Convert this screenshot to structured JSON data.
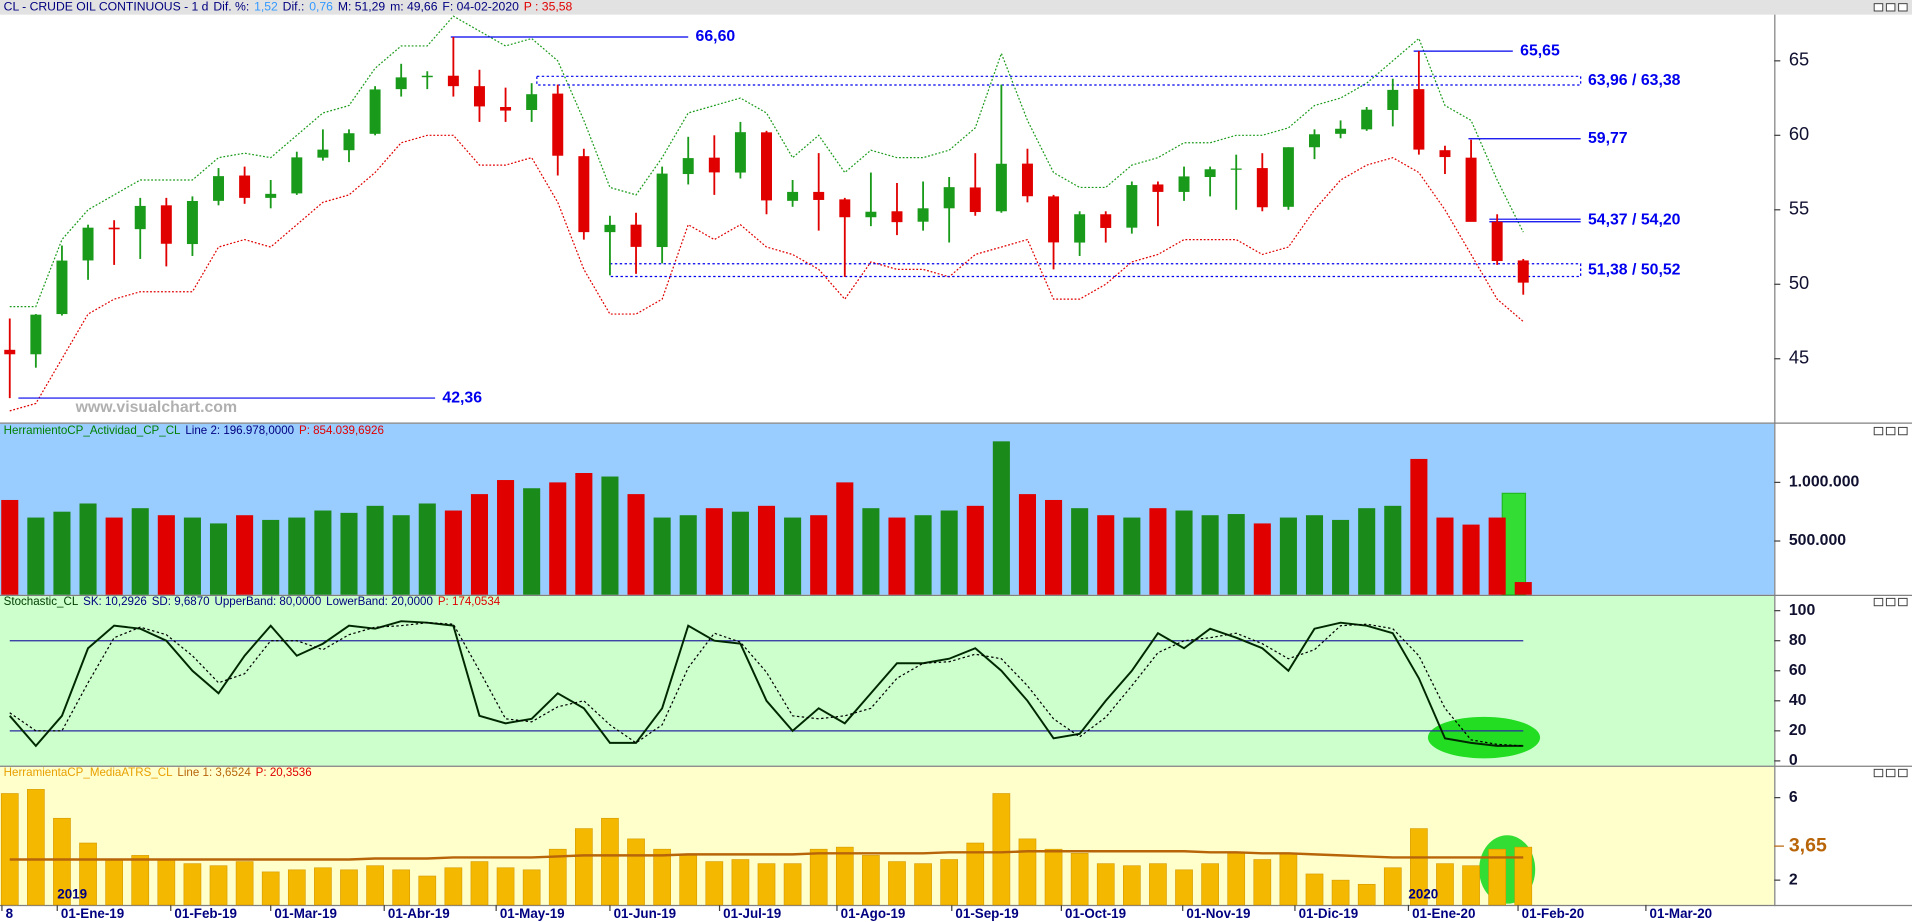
{
  "chart_data": [
    {
      "type": "candlestick",
      "title_parts": [
        {
          "text": "CL - CRUDE OIL CONTINUOUS -  1 d",
          "color": "#000080"
        },
        {
          "text": "Dif. %:",
          "color": "#000080"
        },
        {
          "text": "1,52",
          "color": "#3399ff"
        },
        {
          "text": "Dif.:",
          "color": "#000080"
        },
        {
          "text": "0,76",
          "color": "#3399ff"
        },
        {
          "text": "M: 51,29",
          "color": "#000080"
        },
        {
          "text": "m: 49,66",
          "color": "#000080"
        },
        {
          "text": "F: 04-02-2020",
          "color": "#000080"
        },
        {
          "text": "P : 35,58",
          "color": "#e00000"
        }
      ],
      "watermark": "www.visualchart.com",
      "x": [
        0,
        1,
        2,
        3,
        4,
        5,
        6,
        7,
        8,
        9,
        10,
        11,
        12,
        13,
        14,
        15,
        16,
        17,
        18,
        19,
        20,
        21,
        22,
        23,
        24,
        25,
        26,
        27,
        28,
        29,
        30,
        31,
        32,
        33,
        34,
        35,
        36,
        37,
        38,
        39,
        40,
        41,
        42,
        43,
        44,
        45,
        46,
        47,
        48,
        49,
        50,
        51,
        52,
        53,
        54,
        55,
        56,
        57,
        58
      ],
      "open": [
        45.6,
        45.3,
        48.0,
        51.6,
        53.8,
        53.7,
        55.3,
        52.7,
        55.6,
        57.3,
        55.8,
        56.1,
        58.5,
        59.0,
        60.1,
        63.1,
        63.9,
        64.0,
        63.3,
        61.9,
        61.7,
        62.8,
        58.6,
        53.5,
        54.0,
        52.5,
        57.4,
        58.5,
        57.5,
        60.2,
        55.6,
        56.2,
        55.7,
        54.5,
        54.9,
        54.2,
        55.1,
        56.5,
        54.9,
        58.1,
        55.9,
        52.8,
        54.7,
        53.8,
        56.7,
        56.2,
        57.2,
        57.7,
        57.8,
        55.2,
        59.2,
        60.1,
        60.4,
        61.7,
        63.1,
        59.0,
        58.5,
        54.2,
        51.6
      ],
      "high": [
        47.7,
        48.0,
        52.6,
        54.0,
        54.3,
        55.8,
        55.8,
        55.9,
        57.8,
        57.9,
        57.0,
        58.9,
        60.4,
        60.4,
        63.3,
        64.8,
        64.3,
        66.6,
        64.4,
        63.2,
        63.5,
        63.4,
        59.1,
        54.6,
        54.8,
        57.9,
        59.9,
        60.0,
        60.9,
        60.3,
        57.0,
        58.8,
        55.8,
        57.5,
        56.8,
        56.9,
        57.2,
        58.8,
        63.4,
        59.1,
        56.0,
        54.9,
        54.9,
        56.9,
        56.9,
        57.9,
        57.9,
        58.7,
        58.8,
        59.2,
        60.4,
        61.0,
        61.9,
        63.8,
        65.65,
        59.3,
        59.7,
        54.7,
        51.7
      ],
      "low": [
        42.36,
        44.4,
        47.9,
        50.3,
        51.3,
        51.7,
        51.2,
        51.9,
        55.3,
        55.4,
        55.1,
        56.0,
        58.3,
        58.2,
        60.0,
        62.6,
        63.1,
        62.6,
        60.9,
        60.9,
        60.9,
        57.3,
        53.0,
        50.6,
        50.7,
        51.4,
        56.7,
        56.0,
        57.1,
        54.7,
        55.2,
        53.6,
        50.5,
        53.9,
        53.3,
        53.6,
        52.8,
        54.6,
        54.8,
        55.5,
        51.0,
        51.9,
        52.8,
        53.4,
        53.9,
        55.6,
        55.9,
        55.0,
        54.9,
        55.0,
        58.4,
        59.8,
        60.3,
        60.6,
        58.7,
        57.4,
        54.3,
        51.3,
        49.3
      ],
      "close": [
        45.3,
        47.96,
        51.59,
        53.8,
        53.69,
        55.26,
        52.72,
        55.59,
        57.26,
        55.8,
        56.07,
        58.52,
        59.04,
        60.14,
        63.08,
        63.89,
        64.0,
        63.3,
        61.94,
        61.66,
        62.76,
        58.63,
        53.5,
        53.99,
        52.51,
        57.43,
        58.47,
        57.51,
        60.21,
        55.63,
        56.2,
        55.66,
        54.5,
        54.87,
        54.17,
        55.1,
        56.52,
        54.85,
        58.09,
        55.91,
        52.81,
        54.7,
        53.78,
        56.66,
        56.2,
        57.24,
        57.72,
        57.77,
        55.17,
        59.2,
        60.07,
        60.44,
        61.72,
        63.05,
        59.04,
        58.54,
        54.19,
        51.56,
        50.11
      ],
      "up_color": "#1a9a1a",
      "down_color": "#e00000",
      "bands": [
        {
          "color": "#1a9a1a",
          "values": [
            48.5,
            48.5,
            53,
            55,
            56,
            57,
            57,
            57,
            58.5,
            58.8,
            58.5,
            60,
            61.5,
            62,
            64.5,
            66,
            66,
            68,
            67,
            66,
            66.5,
            65,
            61,
            56.5,
            56,
            58.5,
            61.5,
            62,
            62.5,
            61.5,
            58.5,
            60,
            57.5,
            59,
            58.5,
            58.5,
            59,
            60.5,
            65.5,
            61,
            57.5,
            56.5,
            56.5,
            58,
            58.5,
            59.5,
            59.5,
            60,
            60,
            60.5,
            62,
            62.5,
            63.5,
            65,
            66.5,
            62,
            61,
            57,
            53.5
          ]
        },
        {
          "color": "#e00000",
          "values": [
            41.5,
            42,
            45,
            48,
            49,
            49.5,
            49.5,
            49.5,
            52.5,
            53,
            52.5,
            54,
            55.5,
            56,
            57.5,
            59.5,
            60,
            60,
            58,
            58,
            58.5,
            55.5,
            51,
            48,
            48,
            49,
            54,
            53,
            54,
            52.5,
            52,
            51,
            49,
            51.5,
            51,
            51,
            50.5,
            52,
            52.5,
            53,
            49,
            49,
            50,
            51.5,
            52,
            53,
            53,
            53,
            52,
            52.5,
            55,
            57,
            58,
            58.5,
            57.5,
            55,
            52,
            49,
            47.5
          ]
        }
      ],
      "levels": [
        {
          "label": "66,60",
          "values": [
            66.6
          ],
          "x": [
            16.9,
            26
          ],
          "style": "line"
        },
        {
          "label": "65,65",
          "values": [
            65.65
          ],
          "x": [
            53.8,
            57.6
          ],
          "style": "line"
        },
        {
          "label": "63,96 / 63,38",
          "values": [
            63.96,
            63.38
          ],
          "x": [
            20.2,
            60.2
          ],
          "style": "box"
        },
        {
          "label": "59,77",
          "values": [
            59.77
          ],
          "x": [
            55.9,
            60.2
          ],
          "style": "line"
        },
        {
          "label": "54,37 / 54,20",
          "values": [
            54.37,
            54.2
          ],
          "x": [
            56.7,
            60.2
          ],
          "style": "line"
        },
        {
          "label": "51,38 / 50,52",
          "values": [
            51.38,
            50.52
          ],
          "x": [
            23,
            60.2
          ],
          "style": "box"
        },
        {
          "label": "42,36",
          "values": [
            42.36
          ],
          "x": [
            0.33,
            16.3
          ],
          "style": "line"
        }
      ],
      "level_color": "#0000ee",
      "ylim": [
        40.8,
        68.1
      ],
      "yticks": [
        45,
        50,
        55,
        60,
        65
      ]
    },
    {
      "type": "bar",
      "title_parts": [
        {
          "text": "HerramientoCP_Actividad_CP_CL",
          "color": "#008000"
        },
        {
          "text": "Line 2: 196.978,0000",
          "color": "#000080"
        },
        {
          "text": "P: 854.039,6926",
          "color": "#e00000"
        }
      ],
      "values": [
        850000,
        700000,
        750000,
        820000,
        700000,
        780000,
        720000,
        700000,
        650000,
        720000,
        680000,
        700000,
        760000,
        740000,
        800000,
        720000,
        820000,
        760000,
        900000,
        1020000,
        950000,
        1000000,
        1080000,
        1050000,
        900000,
        700000,
        720000,
        780000,
        750000,
        800000,
        700000,
        720000,
        1000000,
        780000,
        700000,
        720000,
        760000,
        800000,
        1350000,
        900000,
        850000,
        780000,
        720000,
        700000,
        780000,
        760000,
        720000,
        730000,
        650000,
        700000,
        720000,
        680000,
        780000,
        800000,
        1200000,
        700000,
        640000,
        700000,
        150000
      ],
      "up_color": "#1a8a1a",
      "down_color": "#e00000",
      "ylim": [
        42000,
        1500000
      ],
      "yticks": [
        {
          "value": 500000,
          "label": "500.000"
        },
        {
          "value": 1000000,
          "label": "1.000.000"
        }
      ]
    },
    {
      "type": "line",
      "title_parts": [
        {
          "text": "Stochastic_CL",
          "color": "#004000"
        },
        {
          "text": "SK: 10,2926",
          "color": "#000080"
        },
        {
          "text": "SD: 9,6870",
          "color": "#000080"
        },
        {
          "text": "UpperBand: 80,0000",
          "color": "#000080"
        },
        {
          "text": "LowerBand: 20,0000",
          "color": "#000080"
        },
        {
          "text": "P: 174,0534",
          "color": "#e00000"
        }
      ],
      "series": [
        {
          "color": "#002800",
          "values": [
            30,
            10,
            30,
            75,
            90,
            88,
            80,
            60,
            45,
            70,
            90,
            70,
            78,
            90,
            88,
            93,
            92,
            90,
            30,
            25,
            28,
            45,
            35,
            12,
            12,
            35,
            90,
            80,
            78,
            40,
            20,
            35,
            25,
            45,
            65,
            65,
            68,
            75,
            60,
            40,
            15,
            18,
            40,
            60,
            85,
            75,
            88,
            82,
            75,
            60,
            88,
            92,
            90,
            85,
            55,
            15,
            12,
            10,
            10
          ]
        },
        {
          "color": "#000000",
          "dashed": true,
          "values": [
            32,
            20,
            20,
            52,
            82,
            89,
            84,
            70,
            52,
            58,
            80,
            80,
            74,
            84,
            89,
            90,
            92,
            91,
            60,
            28,
            26,
            36,
            40,
            24,
            12,
            24,
            62,
            85,
            79,
            59,
            30,
            28,
            30,
            35,
            55,
            65,
            66,
            71,
            68,
            50,
            28,
            16,
            29,
            50,
            72,
            80,
            82,
            85,
            78,
            68,
            74,
            90,
            91,
            88,
            70,
            35,
            14,
            11,
            10
          ]
        }
      ],
      "bands": [
        80,
        20
      ],
      "band_color": "#2a2aa0",
      "ylim": [
        -3.2,
        109.8
      ],
      "yticks": [
        0,
        20,
        40,
        60,
        80,
        100
      ]
    },
    {
      "type": "bar",
      "title_parts": [
        {
          "text": "HerramientaCP_MediaATRS_CL",
          "color": "#e8a000"
        },
        {
          "text": "Line 1: 3,6524",
          "color": "#b8650a"
        },
        {
          "text": "P: 20,3536",
          "color": "#e00000"
        }
      ],
      "values": [
        6.2,
        6.4,
        5.0,
        3.8,
        3.0,
        3.2,
        3.0,
        2.8,
        2.7,
        2.9,
        2.4,
        2.5,
        2.6,
        2.5,
        2.7,
        2.5,
        2.2,
        2.6,
        2.9,
        2.6,
        2.5,
        3.5,
        4.5,
        5.0,
        4.0,
        3.5,
        3.2,
        2.9,
        3.0,
        2.8,
        2.8,
        3.5,
        3.6,
        3.2,
        2.9,
        2.8,
        3.0,
        3.8,
        6.2,
        4.0,
        3.5,
        3.3,
        2.8,
        2.7,
        2.8,
        2.5,
        2.8,
        3.3,
        3.0,
        3.3,
        2.3,
        2.0,
        1.8,
        2.6,
        4.5,
        2.8,
        2.7,
        3.5,
        3.6
      ],
      "color": "#f5b800",
      "average": {
        "color": "#b8650a",
        "values": [
          3.0,
          3.0,
          3.0,
          3.0,
          3.0,
          3.0,
          3.0,
          3.0,
          3.0,
          3.0,
          3.0,
          3.0,
          3.0,
          3.0,
          3.05,
          3.05,
          3.05,
          3.1,
          3.1,
          3.1,
          3.1,
          3.15,
          3.2,
          3.2,
          3.2,
          3.2,
          3.25,
          3.25,
          3.25,
          3.25,
          3.25,
          3.3,
          3.3,
          3.3,
          3.3,
          3.3,
          3.35,
          3.35,
          3.35,
          3.4,
          3.4,
          3.4,
          3.4,
          3.4,
          3.4,
          3.4,
          3.35,
          3.35,
          3.3,
          3.3,
          3.25,
          3.2,
          3.15,
          3.1,
          3.1,
          3.1,
          3.1,
          3.1,
          3.1
        ]
      },
      "marker": {
        "value": 3.65,
        "label": "3,65",
        "color": "#b8650a"
      },
      "year_labels": [
        {
          "value": 1.82,
          "label": "2019"
        },
        {
          "value": 53.6,
          "label": "2020"
        }
      ],
      "ylim": [
        0.8,
        7.43
      ],
      "yticks": [
        2,
        6
      ],
      "xlim": [
        -0.374,
        67.617
      ],
      "xticks": [
        {
          "value": -0.3,
          "label": "8"
        },
        {
          "value": 1.82,
          "label": "01-Ene-19"
        },
        {
          "value": 6.17,
          "label": "01-Feb-19"
        },
        {
          "value": 10,
          "label": "01-Mar-19"
        },
        {
          "value": 14.35,
          "label": "01-Abr-19"
        },
        {
          "value": 18.64,
          "label": "01-May-19"
        },
        {
          "value": 23,
          "label": "01-Jun-19"
        },
        {
          "value": 27.2,
          "label": "01-Jul-19"
        },
        {
          "value": 31.7,
          "label": "01-Ago-19"
        },
        {
          "value": 36.1,
          "label": "01-Sep-19"
        },
        {
          "value": 40.3,
          "label": "01-Oct-19"
        },
        {
          "value": 44.95,
          "label": "01-Nov-19"
        },
        {
          "value": 49.25,
          "label": "01-Dic-19"
        },
        {
          "value": 53.6,
          "label": "01-Ene-20"
        },
        {
          "value": 57.8,
          "label": "01-Feb-20"
        },
        {
          "value": 62.7,
          "label": "01-Mar-20"
        }
      ]
    }
  ]
}
